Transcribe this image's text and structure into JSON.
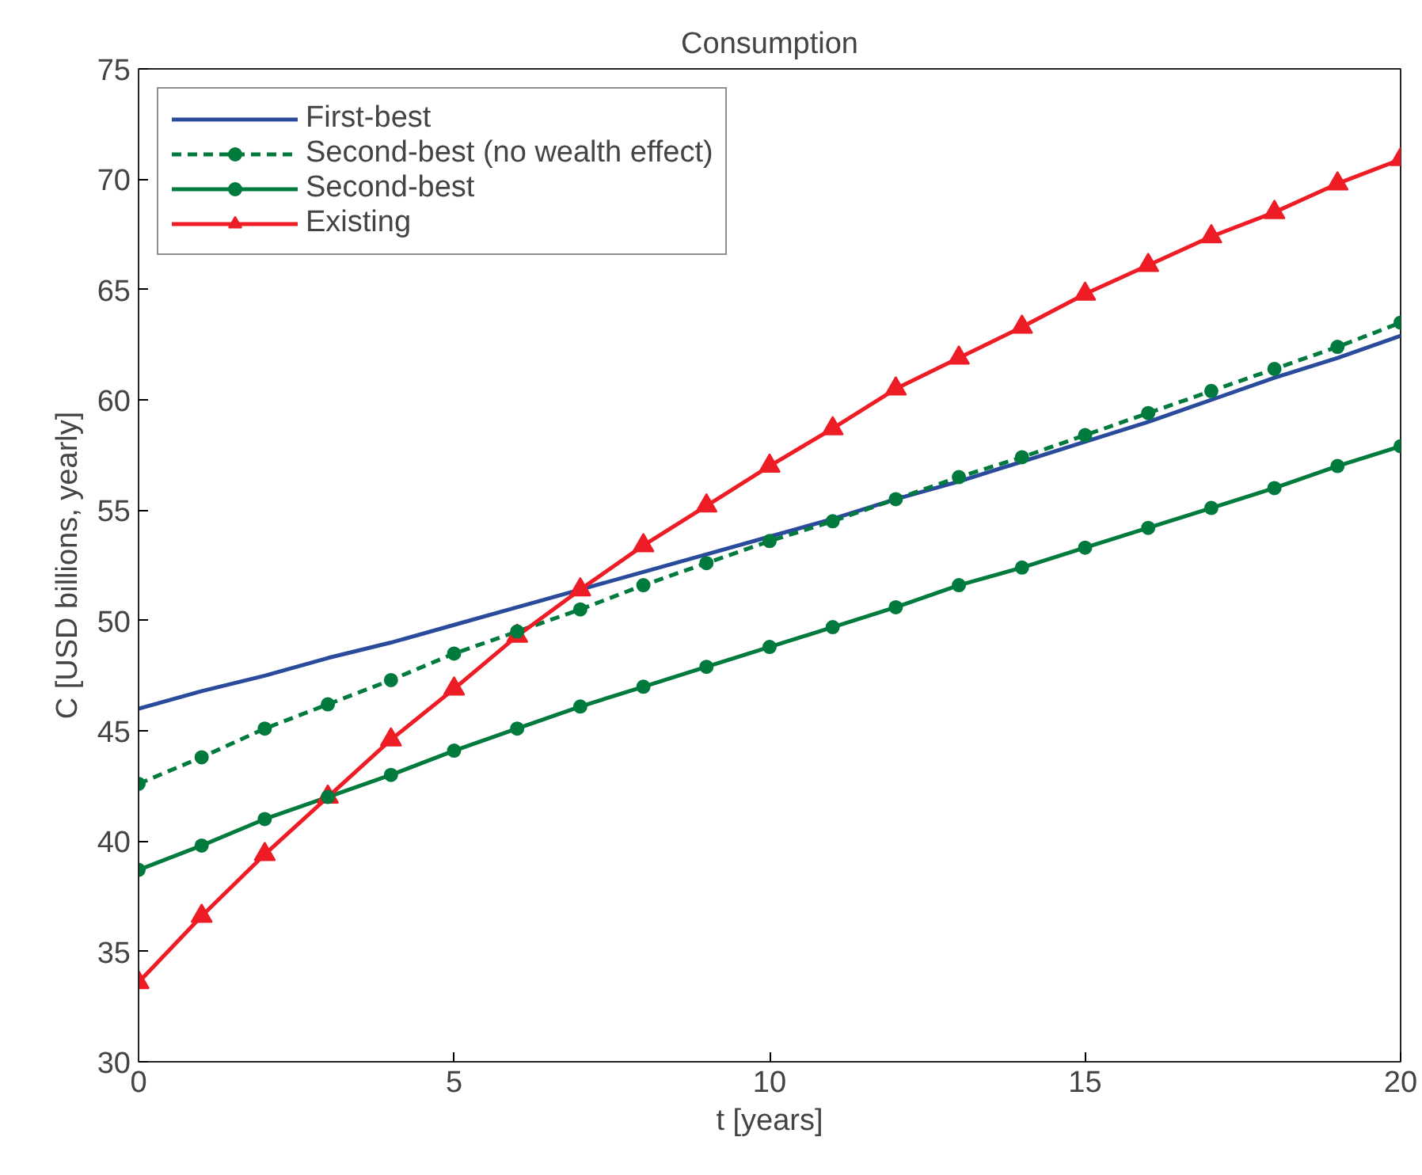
{
  "chart_data": {
    "type": "line",
    "title": "Consumption",
    "xlabel": "t [years]",
    "ylabel": "C [USD billions, yearly]",
    "x": [
      0,
      1,
      2,
      3,
      4,
      5,
      6,
      7,
      8,
      9,
      10,
      11,
      12,
      13,
      14,
      15,
      16,
      17,
      18,
      19,
      20
    ],
    "xlim": [
      0,
      20
    ],
    "xticks": [
      0,
      5,
      10,
      15,
      20
    ],
    "ylim": [
      30,
      75
    ],
    "yticks": [
      30,
      35,
      40,
      45,
      50,
      55,
      60,
      65,
      70,
      75
    ],
    "grid": false,
    "legend": "top left",
    "series": [
      {
        "name": "First-best",
        "color": "#2a4b9b",
        "marker": "none",
        "line_style": "solid",
        "values": [
          46.0,
          46.8,
          47.5,
          48.3,
          49.0,
          49.8,
          50.6,
          51.4,
          52.2,
          53.0,
          53.8,
          54.6,
          55.5,
          56.3,
          57.2,
          58.1,
          59.0,
          60.0,
          61.0,
          61.9,
          62.9
        ]
      },
      {
        "name": "Second-best (no wealth effect)",
        "color": "#007a3d",
        "marker": "circle",
        "line_style": "dashed",
        "values": [
          42.6,
          43.8,
          45.1,
          46.2,
          47.3,
          48.5,
          49.5,
          50.5,
          51.6,
          52.6,
          53.6,
          54.5,
          55.5,
          56.5,
          57.4,
          58.4,
          59.4,
          60.4,
          61.4,
          62.4,
          63.5
        ]
      },
      {
        "name": "Second-best",
        "color": "#007a3d",
        "marker": "circle",
        "line_style": "solid",
        "values": [
          38.7,
          39.8,
          41.0,
          42.0,
          43.0,
          44.1,
          45.1,
          46.1,
          47.0,
          47.9,
          48.8,
          49.7,
          50.6,
          51.6,
          52.4,
          53.3,
          54.2,
          55.1,
          56.0,
          57.0,
          57.9
        ]
      },
      {
        "name": "Existing",
        "color": "#ee1c25",
        "marker": "triangle",
        "line_style": "solid",
        "values": [
          33.6,
          36.6,
          39.4,
          42.0,
          44.6,
          46.9,
          49.3,
          51.4,
          53.4,
          55.2,
          57.0,
          58.7,
          60.5,
          61.9,
          63.3,
          64.8,
          66.1,
          67.4,
          68.5,
          69.8,
          70.9
        ]
      }
    ]
  }
}
